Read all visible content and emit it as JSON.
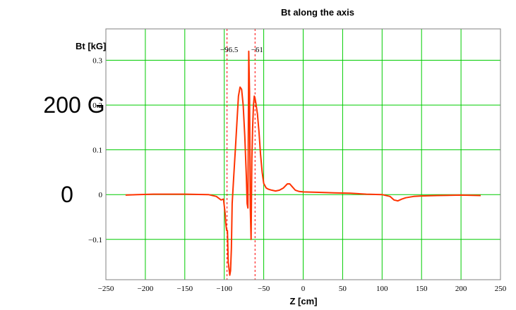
{
  "chart_data": {
    "type": "line",
    "title": "Bt along the axis",
    "ylabel": "Bt [kG]",
    "xlabel": "Z [cm]",
    "xlim": [
      -250,
      250
    ],
    "ylim": [
      -0.19,
      0.37
    ],
    "xticks": [
      "−250",
      "−200",
      "−150",
      "−100",
      "−50",
      "0",
      "50",
      "100",
      "150",
      "200",
      "250"
    ],
    "xtick_values": [
      -250,
      -200,
      -150,
      -100,
      -50,
      0,
      50,
      100,
      150,
      200,
      250
    ],
    "yticks": [
      "0.3",
      "0.2",
      "0.1",
      "0",
      "−0.1"
    ],
    "ytick_values": [
      0.3,
      0.2,
      0.1,
      0,
      -0.1
    ],
    "grid": true,
    "grid_color": "#00cc00",
    "line_color": "#ff3300",
    "markers": [
      {
        "x": -96.5,
        "label": "−96.5"
      },
      {
        "x": -61,
        "label": "−61"
      }
    ],
    "annotations": [
      {
        "text": "200 G",
        "y": 0.2
      },
      {
        "text": "0",
        "y": 0
      }
    ],
    "series": [
      {
        "x": [
          -225,
          -210,
          -190,
          -150,
          -120,
          -110,
          -104,
          -101,
          -99,
          -98,
          -97,
          -96,
          -95,
          -93,
          -92,
          -91,
          -90,
          -88,
          -86,
          -84,
          -82,
          -80,
          -78,
          -76,
          -74,
          -72,
          -71,
          -70,
          -69,
          -68,
          -67,
          -66,
          -65,
          -64,
          -63,
          -62,
          -61,
          -60,
          -58,
          -56,
          -54,
          -52,
          -50,
          -47,
          -44,
          -40,
          -35,
          -30,
          -25,
          -20,
          -17,
          -14,
          -10,
          -5,
          0,
          20,
          40,
          60,
          80,
          100,
          110,
          115,
          120,
          125,
          130,
          140,
          150,
          170,
          200,
          225
        ],
        "y": [
          -0.001,
          0,
          0.001,
          0.001,
          0,
          -0.004,
          -0.012,
          -0.01,
          -0.04,
          -0.065,
          -0.08,
          -0.08,
          -0.15,
          -0.18,
          -0.17,
          -0.12,
          -0.02,
          0.04,
          0.1,
          0.16,
          0.22,
          0.24,
          0.235,
          0.2,
          0.13,
          0.04,
          -0.02,
          -0.03,
          0.32,
          0.23,
          -0.03,
          -0.1,
          0.08,
          0.15,
          0.2,
          0.22,
          0.215,
          0.205,
          0.18,
          0.14,
          0.09,
          0.05,
          0.025,
          0.015,
          0.012,
          0.01,
          0.008,
          0.01,
          0.015,
          0.024,
          0.024,
          0.018,
          0.01,
          0.007,
          0.006,
          0.005,
          0.004,
          0.003,
          0.001,
          0,
          -0.004,
          -0.012,
          -0.014,
          -0.01,
          -0.007,
          -0.004,
          -0.003,
          -0.002,
          -0.001,
          -0.002
        ]
      }
    ]
  }
}
